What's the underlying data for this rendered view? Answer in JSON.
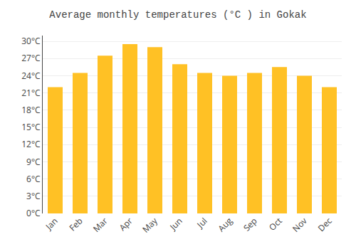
{
  "chart_data": {
    "type": "bar",
    "title": "Average monthly temperatures (°C ) in Gokak",
    "categories": [
      "Jan",
      "Feb",
      "Mar",
      "Apr",
      "May",
      "Jun",
      "Jul",
      "Aug",
      "Sep",
      "Oct",
      "Nov",
      "Dec"
    ],
    "values": [
      22,
      24.5,
      27.5,
      29.5,
      29,
      26,
      24.5,
      24,
      24.5,
      25.5,
      24,
      22
    ],
    "color": "#FFC125",
    "ylim": [
      0,
      31
    ],
    "yticks": [
      {
        "value": 0,
        "label": "0°C"
      },
      {
        "value": 3,
        "label": "3°C"
      },
      {
        "value": 6,
        "label": "6°C"
      },
      {
        "value": 9,
        "label": "9°C"
      },
      {
        "value": 12,
        "label": "12°C"
      },
      {
        "value": 15,
        "label": "15°C"
      },
      {
        "value": 18,
        "label": "18°C"
      },
      {
        "value": 21,
        "label": "21°C"
      },
      {
        "value": 24,
        "label": "24°C"
      },
      {
        "value": 27,
        "label": "27°C"
      },
      {
        "value": 30,
        "label": "30°C"
      }
    ],
    "grid": true
  }
}
